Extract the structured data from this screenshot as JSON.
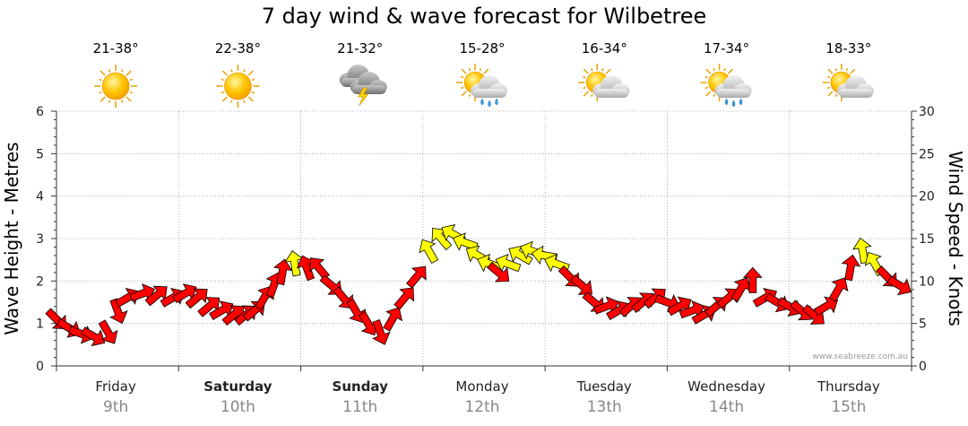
{
  "chart_data": {
    "type": "line",
    "title": "7 day wind & wave forecast for Wilbetree",
    "ylabel_left": "Wave Height - Metres",
    "ylabel_right": "Wind Speed - Knots",
    "ylim_left": [
      0,
      6
    ],
    "ylim_right": [
      0,
      30
    ],
    "yticks_left": [
      "0",
      "1",
      "2",
      "3",
      "4",
      "5",
      "6"
    ],
    "yticks_right": [
      "0",
      "5",
      "10",
      "15",
      "20",
      "25",
      "30"
    ],
    "watermark": "www.seabreeze.com.au",
    "grid": true,
    "days": [
      {
        "day": "Friday",
        "date": "9th",
        "temp": "21-38°",
        "icon": "sunny-icon",
        "bold": false
      },
      {
        "day": "Saturday",
        "date": "10th",
        "temp": "22-38°",
        "icon": "sunny-icon",
        "bold": true
      },
      {
        "day": "Sunday",
        "date": "11th",
        "temp": "21-32°",
        "icon": "thunderstorm-icon",
        "bold": true
      },
      {
        "day": "Monday",
        "date": "12th",
        "temp": "15-28°",
        "icon": "partly-cloudy-showers-icon",
        "bold": false
      },
      {
        "day": "Tuesday",
        "date": "13th",
        "temp": "16-34°",
        "icon": "partly-cloudy-icon",
        "bold": false
      },
      {
        "day": "Wednesday",
        "date": "14th",
        "temp": "17-34°",
        "icon": "partly-cloudy-showers-icon",
        "bold": false
      },
      {
        "day": "Thursday",
        "date": "15th",
        "temp": "18-33°",
        "icon": "partly-cloudy-icon",
        "bold": false
      }
    ],
    "series": [
      {
        "name": "Wind Speed",
        "unit": "knots",
        "color_strong": "#ff0000",
        "color_light": "#ffff00",
        "points": [
          [
            0.0,
            5.5,
            45
          ],
          [
            0.1,
            4.5,
            30
          ],
          [
            0.2,
            3.8,
            20
          ],
          [
            0.3,
            3.5,
            30
          ],
          [
            0.42,
            4.0,
            60
          ],
          [
            0.5,
            6.5,
            70
          ],
          [
            0.58,
            8.0,
            -30
          ],
          [
            0.7,
            8.5,
            -20
          ],
          [
            0.82,
            8.3,
            -40
          ],
          [
            0.95,
            8.0,
            -30
          ],
          [
            1.05,
            8.5,
            -30
          ],
          [
            1.15,
            8.0,
            -40
          ],
          [
            1.25,
            7.0,
            -40
          ],
          [
            1.35,
            6.5,
            -30
          ],
          [
            1.45,
            6.0,
            -40
          ],
          [
            1.55,
            6.0,
            -40
          ],
          [
            1.62,
            6.5,
            -40
          ],
          [
            1.7,
            8.0,
            -60
          ],
          [
            1.78,
            9.5,
            -70
          ],
          [
            1.85,
            11.0,
            -80
          ],
          [
            1.95,
            12.0,
            -100
          ],
          [
            2.05,
            11.5,
            -110
          ],
          [
            2.15,
            11.5,
            -130
          ],
          [
            2.25,
            9.5,
            40
          ],
          [
            2.35,
            8.0,
            50
          ],
          [
            2.45,
            6.5,
            60
          ],
          [
            2.55,
            5.0,
            60
          ],
          [
            2.65,
            4.0,
            70
          ],
          [
            2.75,
            5.5,
            -60
          ],
          [
            2.85,
            8.0,
            -50
          ],
          [
            2.95,
            10.5,
            -50
          ],
          [
            3.05,
            13.5,
            -120
          ],
          [
            3.15,
            15.0,
            -130
          ],
          [
            3.25,
            15.5,
            -150
          ],
          [
            3.35,
            14.5,
            -160
          ],
          [
            3.45,
            13.0,
            -150
          ],
          [
            3.55,
            12.0,
            -160
          ],
          [
            3.62,
            11.0,
            40
          ],
          [
            3.7,
            12.0,
            -160
          ],
          [
            3.8,
            13.0,
            -150
          ],
          [
            3.9,
            13.5,
            -160
          ],
          [
            4.0,
            13.0,
            -170
          ],
          [
            4.1,
            12.0,
            -160
          ],
          [
            4.2,
            10.5,
            45
          ],
          [
            4.3,
            9.5,
            40
          ],
          [
            4.4,
            7.5,
            40
          ],
          [
            4.5,
            7.0,
            -20
          ],
          [
            4.6,
            6.5,
            -30
          ],
          [
            4.7,
            7.0,
            -40
          ],
          [
            4.8,
            7.5,
            -40
          ],
          [
            4.9,
            8.0,
            -40
          ],
          [
            5.0,
            7.5,
            20
          ],
          [
            5.1,
            7.0,
            -30
          ],
          [
            5.2,
            6.5,
            -20
          ],
          [
            5.3,
            6.0,
            -30
          ],
          [
            5.4,
            7.0,
            -40
          ],
          [
            5.5,
            8.0,
            -40
          ],
          [
            5.6,
            9.0,
            -60
          ],
          [
            5.7,
            10.0,
            -90
          ],
          [
            5.8,
            8.0,
            -30
          ],
          [
            5.9,
            7.5,
            30
          ],
          [
            6.0,
            7.0,
            30
          ],
          [
            6.1,
            6.5,
            40
          ],
          [
            6.2,
            6.0,
            40
          ],
          [
            6.3,
            7.0,
            -30
          ],
          [
            6.4,
            9.0,
            -60
          ],
          [
            6.5,
            11.5,
            -80
          ],
          [
            6.6,
            13.5,
            -100
          ],
          [
            6.7,
            12.0,
            -120
          ],
          [
            6.8,
            10.5,
            45
          ],
          [
            6.9,
            9.5,
            30
          ]
        ]
      }
    ]
  }
}
